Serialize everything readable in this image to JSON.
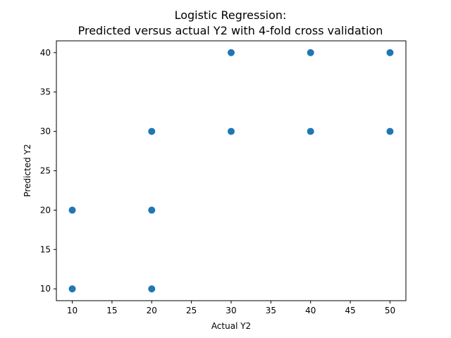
{
  "chart_data": {
    "type": "scatter",
    "title_line1": "Logistic Regression:",
    "title_line2": "Predicted versus actual Y2 with 4-fold cross validation",
    "xlabel": "Actual Y2",
    "ylabel": "Predicted Y2",
    "xlim": [
      8,
      52
    ],
    "ylim": [
      8.5,
      41.5
    ],
    "xticks": [
      10,
      15,
      20,
      25,
      30,
      35,
      40,
      45,
      50
    ],
    "yticks": [
      10,
      15,
      20,
      25,
      30,
      35,
      40
    ],
    "grid": false,
    "point_color": "#1f77b4",
    "points": [
      {
        "x": 10,
        "y": 10
      },
      {
        "x": 10,
        "y": 20
      },
      {
        "x": 20,
        "y": 10
      },
      {
        "x": 20,
        "y": 20
      },
      {
        "x": 20,
        "y": 30
      },
      {
        "x": 30,
        "y": 30
      },
      {
        "x": 30,
        "y": 40
      },
      {
        "x": 40,
        "y": 30
      },
      {
        "x": 40,
        "y": 40
      },
      {
        "x": 50,
        "y": 30
      },
      {
        "x": 50,
        "y": 40
      }
    ]
  }
}
